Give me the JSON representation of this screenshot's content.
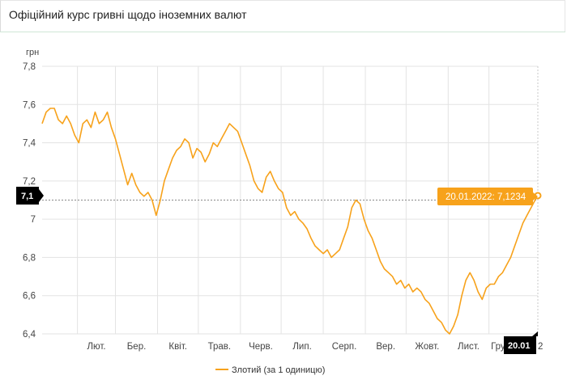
{
  "header": {
    "title": "Офіційний курс гривні щодо іноземних валют"
  },
  "chart_data": {
    "type": "line",
    "title": "",
    "ylabel": "грн",
    "xlabel": "",
    "ylim": [
      6.4,
      7.8
    ],
    "yticks": [
      6.4,
      6.6,
      6.8,
      7,
      7.2,
      7.4,
      7.6,
      7.8
    ],
    "ytick_labels": [
      "6,4",
      "6,6",
      "6,8",
      "7",
      "7,2",
      "7,4",
      "7,6",
      "7,8"
    ],
    "x_start": "2021-01-20",
    "x_end": "2022-01-20",
    "month_ticks": [
      {
        "label": "Лют.",
        "date": "2021-02-15"
      },
      {
        "label": "Бер.",
        "date": "2021-03-15"
      },
      {
        "label": "Квіт.",
        "date": "2021-04-15"
      },
      {
        "label": "Трав.",
        "date": "2021-05-15"
      },
      {
        "label": "Черв.",
        "date": "2021-06-15"
      },
      {
        "label": "Лип.",
        "date": "2021-07-15"
      },
      {
        "label": "Серп.",
        "date": "2021-08-15"
      },
      {
        "label": "Вер.",
        "date": "2021-09-15"
      },
      {
        "label": "Жовт.",
        "date": "2021-10-15"
      },
      {
        "label": "Лист.",
        "date": "2021-11-15"
      },
      {
        "label": "Груд.",
        "date": "2021-12-15"
      }
    ],
    "grid": true,
    "legend": "bottom-center",
    "series": [
      {
        "name": "Злотий (за 1 одиницю)",
        "color": "#f7a21b",
        "points": [
          [
            "2021-01-20",
            7.5
          ],
          [
            "2021-01-23",
            7.56
          ],
          [
            "2021-01-26",
            7.58
          ],
          [
            "2021-01-29",
            7.58
          ],
          [
            "2021-02-01",
            7.52
          ],
          [
            "2021-02-04",
            7.5
          ],
          [
            "2021-02-07",
            7.54
          ],
          [
            "2021-02-10",
            7.5
          ],
          [
            "2021-02-13",
            7.44
          ],
          [
            "2021-02-16",
            7.4
          ],
          [
            "2021-02-19",
            7.5
          ],
          [
            "2021-02-22",
            7.52
          ],
          [
            "2021-02-25",
            7.48
          ],
          [
            "2021-02-28",
            7.56
          ],
          [
            "2021-03-03",
            7.5
          ],
          [
            "2021-03-06",
            7.52
          ],
          [
            "2021-03-09",
            7.56
          ],
          [
            "2021-03-12",
            7.48
          ],
          [
            "2021-03-15",
            7.42
          ],
          [
            "2021-03-18",
            7.34
          ],
          [
            "2021-03-21",
            7.26
          ],
          [
            "2021-03-24",
            7.18
          ],
          [
            "2021-03-27",
            7.24
          ],
          [
            "2021-03-30",
            7.18
          ],
          [
            "2021-04-02",
            7.14
          ],
          [
            "2021-04-05",
            7.12
          ],
          [
            "2021-04-08",
            7.14
          ],
          [
            "2021-04-11",
            7.1
          ],
          [
            "2021-04-14",
            7.02
          ],
          [
            "2021-04-17",
            7.1
          ],
          [
            "2021-04-20",
            7.2
          ],
          [
            "2021-04-23",
            7.26
          ],
          [
            "2021-04-26",
            7.32
          ],
          [
            "2021-04-29",
            7.36
          ],
          [
            "2021-05-02",
            7.38
          ],
          [
            "2021-05-05",
            7.42
          ],
          [
            "2021-05-08",
            7.4
          ],
          [
            "2021-05-11",
            7.32
          ],
          [
            "2021-05-14",
            7.37
          ],
          [
            "2021-05-17",
            7.35
          ],
          [
            "2021-05-20",
            7.3
          ],
          [
            "2021-05-23",
            7.34
          ],
          [
            "2021-05-26",
            7.4
          ],
          [
            "2021-05-29",
            7.38
          ],
          [
            "2021-06-01",
            7.42
          ],
          [
            "2021-06-04",
            7.46
          ],
          [
            "2021-06-07",
            7.5
          ],
          [
            "2021-06-10",
            7.48
          ],
          [
            "2021-06-13",
            7.46
          ],
          [
            "2021-06-16",
            7.4
          ],
          [
            "2021-06-19",
            7.34
          ],
          [
            "2021-06-22",
            7.28
          ],
          [
            "2021-06-25",
            7.2
          ],
          [
            "2021-06-28",
            7.16
          ],
          [
            "2021-07-01",
            7.14
          ],
          [
            "2021-07-04",
            7.22
          ],
          [
            "2021-07-07",
            7.25
          ],
          [
            "2021-07-10",
            7.2
          ],
          [
            "2021-07-13",
            7.16
          ],
          [
            "2021-07-16",
            7.14
          ],
          [
            "2021-07-19",
            7.06
          ],
          [
            "2021-07-22",
            7.02
          ],
          [
            "2021-07-25",
            7.04
          ],
          [
            "2021-07-28",
            7.0
          ],
          [
            "2021-07-31",
            6.98
          ],
          [
            "2021-08-03",
            6.95
          ],
          [
            "2021-08-06",
            6.9
          ],
          [
            "2021-08-09",
            6.86
          ],
          [
            "2021-08-12",
            6.84
          ],
          [
            "2021-08-15",
            6.82
          ],
          [
            "2021-08-18",
            6.84
          ],
          [
            "2021-08-21",
            6.8
          ],
          [
            "2021-08-24",
            6.82
          ],
          [
            "2021-08-27",
            6.84
          ],
          [
            "2021-08-30",
            6.9
          ],
          [
            "2021-09-02",
            6.96
          ],
          [
            "2021-09-05",
            7.06
          ],
          [
            "2021-09-08",
            7.1
          ],
          [
            "2021-09-11",
            7.08
          ],
          [
            "2021-09-14",
            7.0
          ],
          [
            "2021-09-17",
            6.94
          ],
          [
            "2021-09-20",
            6.9
          ],
          [
            "2021-09-23",
            6.84
          ],
          [
            "2021-09-26",
            6.78
          ],
          [
            "2021-09-29",
            6.74
          ],
          [
            "2021-10-02",
            6.72
          ],
          [
            "2021-10-05",
            6.7
          ],
          [
            "2021-10-08",
            6.66
          ],
          [
            "2021-10-11",
            6.68
          ],
          [
            "2021-10-14",
            6.64
          ],
          [
            "2021-10-17",
            6.66
          ],
          [
            "2021-10-20",
            6.62
          ],
          [
            "2021-10-23",
            6.64
          ],
          [
            "2021-10-26",
            6.62
          ],
          [
            "2021-10-29",
            6.58
          ],
          [
            "2021-11-01",
            6.56
          ],
          [
            "2021-11-04",
            6.52
          ],
          [
            "2021-11-07",
            6.48
          ],
          [
            "2021-11-10",
            6.46
          ],
          [
            "2021-11-13",
            6.42
          ],
          [
            "2021-11-16",
            6.4
          ],
          [
            "2021-11-19",
            6.44
          ],
          [
            "2021-11-22",
            6.5
          ],
          [
            "2021-11-25",
            6.6
          ],
          [
            "2021-11-28",
            6.68
          ],
          [
            "2021-12-01",
            6.72
          ],
          [
            "2021-12-04",
            6.68
          ],
          [
            "2021-12-07",
            6.62
          ],
          [
            "2021-12-10",
            6.58
          ],
          [
            "2021-12-13",
            6.64
          ],
          [
            "2021-12-16",
            6.66
          ],
          [
            "2021-12-19",
            6.66
          ],
          [
            "2021-12-22",
            6.7
          ],
          [
            "2021-12-25",
            6.72
          ],
          [
            "2021-12-28",
            6.76
          ],
          [
            "2021-12-31",
            6.8
          ],
          [
            "2022-01-03",
            6.86
          ],
          [
            "2022-01-06",
            6.92
          ],
          [
            "2022-01-09",
            6.98
          ],
          [
            "2022-01-12",
            7.02
          ],
          [
            "2022-01-15",
            7.06
          ],
          [
            "2022-01-18",
            7.1
          ],
          [
            "2022-01-20",
            7.1234
          ]
        ]
      }
    ],
    "crosshair": {
      "y_value": 7.1,
      "y_label": "7,1",
      "x_label": "20.01",
      "last_tick_fragment": "2",
      "tooltip": "20.01.2022: 7,1234",
      "tooltip_color": "#f7a21b"
    }
  }
}
